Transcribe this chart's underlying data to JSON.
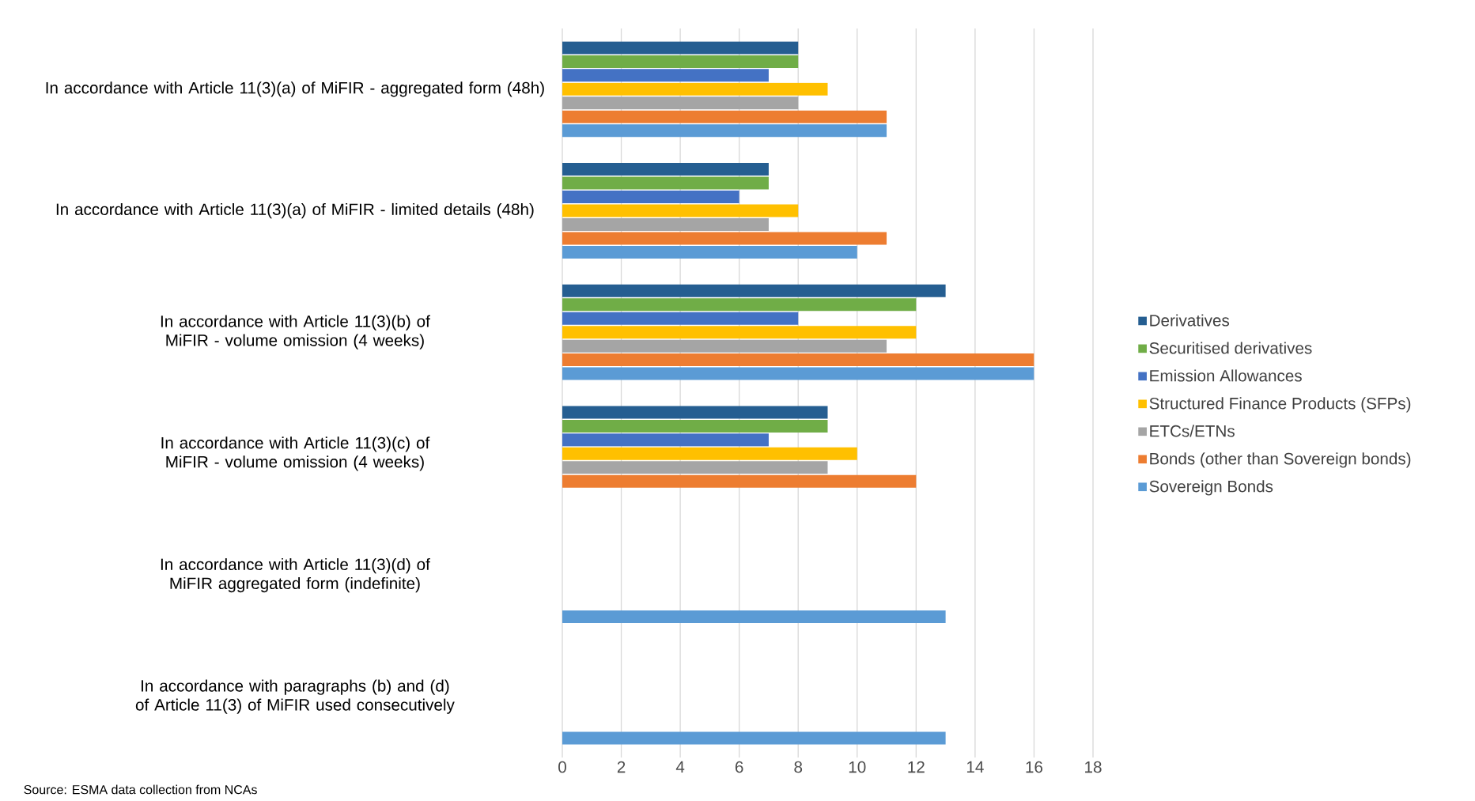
{
  "chart_data": {
    "type": "bar",
    "orientation": "horizontal",
    "categories": [
      "In accordance with Article 11(3)(a) of MiFIR - aggregated form (48h)",
      "In accordance with Article 11(3)(a) of MiFIR - limited details (48h)",
      "In accordance with Article 11(3)(b) of MiFIR - volume omission (4 weeks)",
      "In accordance with Article 11(3)(c) of MiFIR - volume omission (4 weeks)",
      "In accordance with Article 11(3)(d) of MiFIR aggregated form (indefinite)",
      "In accordance with paragraphs (b) and (d) of Article 11(3) of MiFIR used consecutively"
    ],
    "series": [
      {
        "name": "Derivatives",
        "color": "#255e91",
        "values": [
          8,
          7,
          13,
          9,
          null,
          null
        ]
      },
      {
        "name": "Securitised derivatives",
        "color": "#70ad47",
        "values": [
          8,
          7,
          12,
          9,
          null,
          null
        ]
      },
      {
        "name": "Emission Allowances",
        "color": "#4472c4",
        "values": [
          7,
          6,
          8,
          7,
          null,
          null
        ]
      },
      {
        "name": "Structured Finance Products (SFPs)",
        "color": "#ffc000",
        "values": [
          9,
          8,
          12,
          10,
          null,
          null
        ]
      },
      {
        "name": "ETCs/ETNs",
        "color": "#a5a5a5",
        "values": [
          8,
          7,
          11,
          9,
          null,
          null
        ]
      },
      {
        "name": "Bonds (other than Sovereign bonds)",
        "color": "#ed7d31",
        "values": [
          11,
          11,
          16,
          12,
          null,
          null
        ]
      },
      {
        "name": "Sovereign Bonds",
        "color": "#5b9bd5",
        "values": [
          11,
          10,
          16,
          null,
          13,
          13
        ]
      }
    ],
    "xlim": [
      0,
      18
    ],
    "xticks": [
      0,
      2,
      4,
      6,
      8,
      10,
      12,
      14,
      16,
      18
    ],
    "grid": "x",
    "legend": "right",
    "annotations": [
      "Source: ESMA data collection from NCAs"
    ]
  }
}
